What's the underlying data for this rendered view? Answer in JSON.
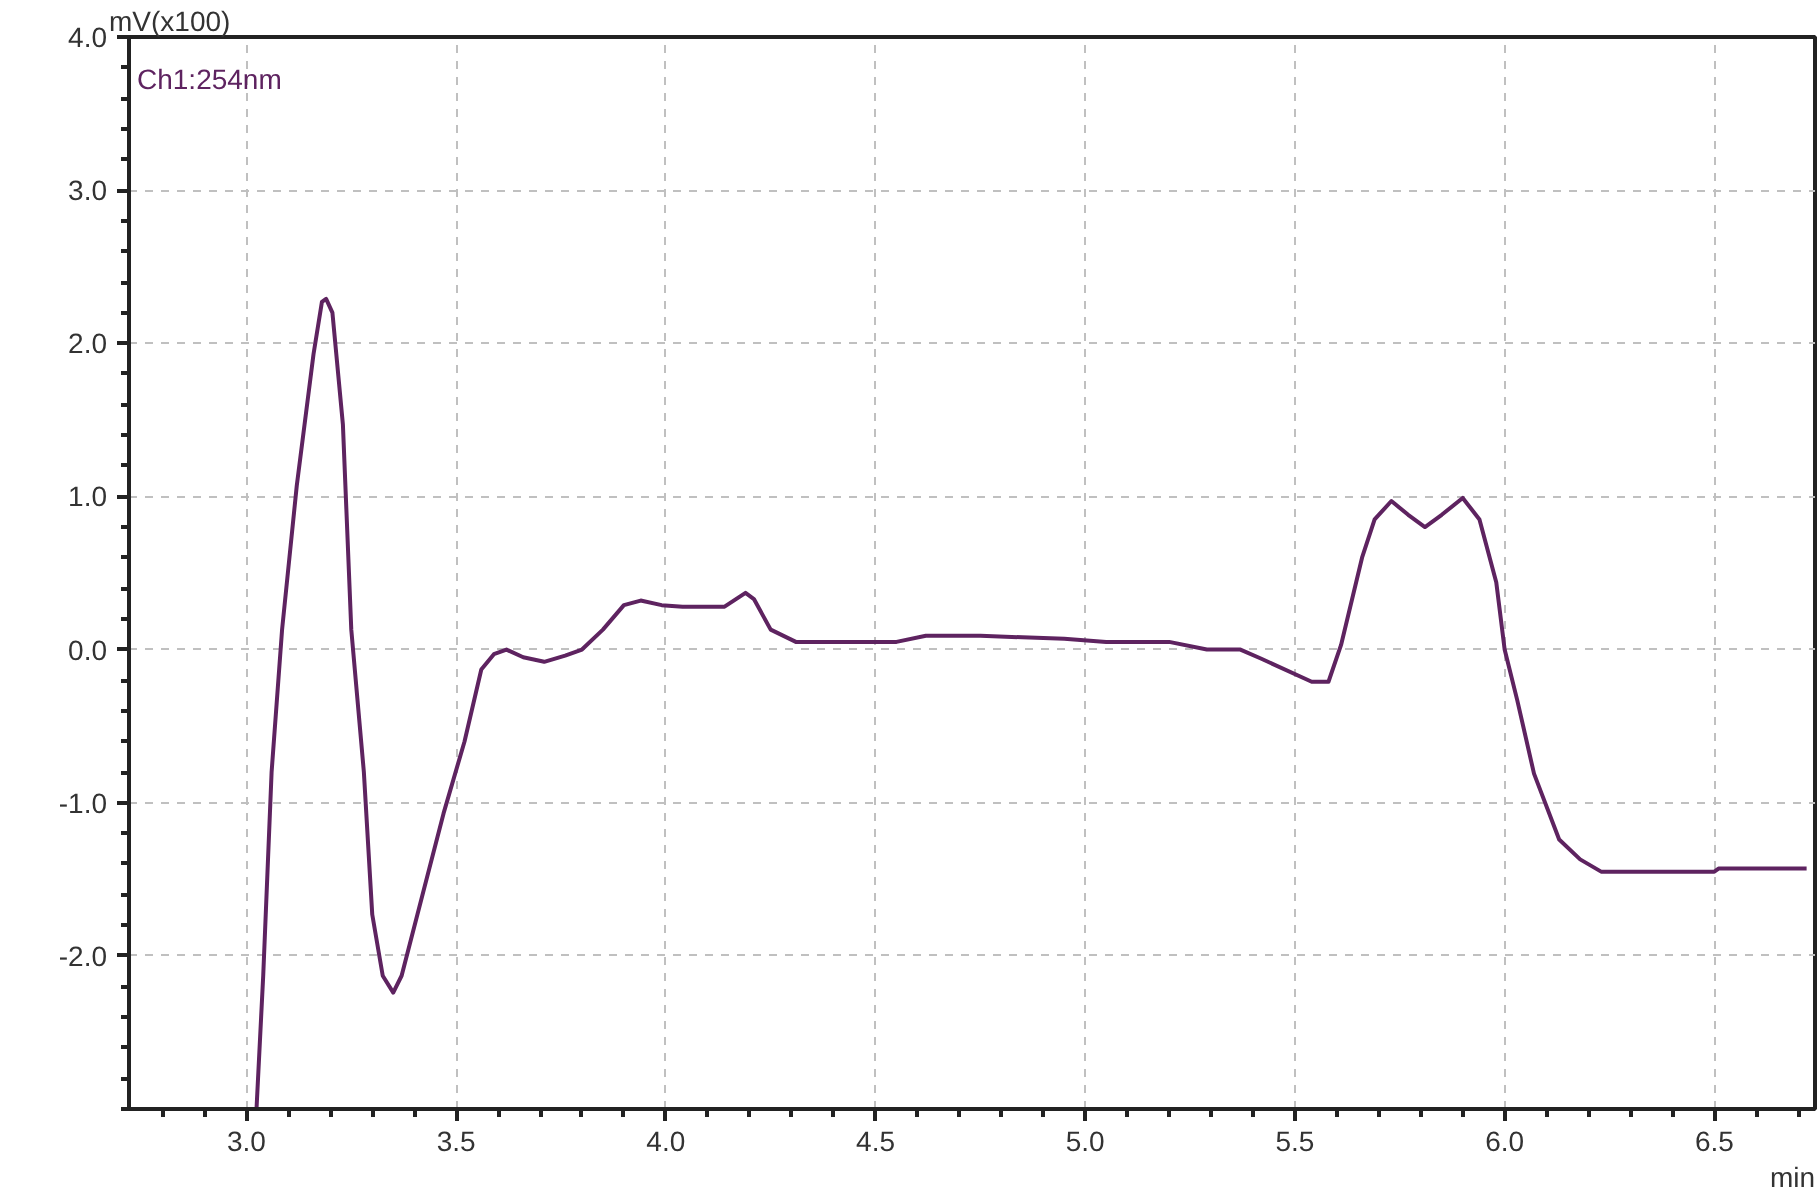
{
  "chart_data": {
    "type": "line",
    "ylabel": "mV(x100)",
    "xlabel": "min",
    "xlim": [
      2.72,
      6.74
    ],
    "ylim": [
      -3.0,
      4.0
    ],
    "xticks": [
      {
        "value": 3.0,
        "label": "3.0"
      },
      3.5,
      {
        "value": 4.0,
        "label": "4.0"
      },
      4.5,
      {
        "value": 5.0,
        "label": "5.0"
      },
      5.5,
      {
        "value": 6.0,
        "label": "6.0"
      },
      6.5
    ],
    "yticks": [
      {
        "value": -2.0,
        "label": "-2.0"
      },
      {
        "value": -1.0,
        "label": "-1.0"
      },
      {
        "value": 0.0,
        "label": "0.0"
      },
      {
        "value": 1.0,
        "label": "1.0"
      },
      {
        "value": 2.0,
        "label": "2.0"
      },
      {
        "value": 3.0,
        "label": "3.0"
      },
      {
        "value": 4.0,
        "label": "4.0"
      }
    ],
    "grid": true,
    "legend": "top left",
    "line_style": "solid",
    "marker": "none",
    "series": [
      {
        "name": "Ch1:254nm",
        "color": "#5e2360",
        "x": [
          3.024,
          3.04,
          3.06,
          3.085,
          3.12,
          3.16,
          3.18,
          3.19,
          3.205,
          3.23,
          3.25,
          3.28,
          3.3,
          3.325,
          3.35,
          3.37,
          3.42,
          3.47,
          3.52,
          3.56,
          3.59,
          3.62,
          3.66,
          3.71,
          3.76,
          3.8,
          3.85,
          3.9,
          3.94,
          3.99,
          4.04,
          4.14,
          4.19,
          4.21,
          4.25,
          4.31,
          4.45,
          4.55,
          4.62,
          4.75,
          4.85,
          4.95,
          5.05,
          5.2,
          5.29,
          5.37,
          5.42,
          5.54,
          5.58,
          5.61,
          5.66,
          5.69,
          5.73,
          5.77,
          5.81,
          5.85,
          5.9,
          5.94,
          5.98,
          6.0,
          6.03,
          6.07,
          6.13,
          6.18,
          6.23,
          6.5,
          6.51,
          6.72
        ],
        "values": [
          -3.0,
          -2.13,
          -0.8,
          0.13,
          1.07,
          1.93,
          2.27,
          2.29,
          2.2,
          1.47,
          0.13,
          -0.8,
          -1.73,
          -2.13,
          -2.24,
          -2.13,
          -1.6,
          -1.07,
          -0.6,
          -0.13,
          -0.03,
          0.0,
          -0.05,
          -0.08,
          -0.04,
          0.0,
          0.13,
          0.29,
          0.32,
          0.29,
          0.28,
          0.28,
          0.37,
          0.33,
          0.13,
          0.05,
          0.05,
          0.05,
          0.09,
          0.09,
          0.08,
          0.07,
          0.05,
          0.05,
          0.0,
          0.0,
          -0.06,
          -0.21,
          -0.21,
          0.03,
          0.6,
          0.85,
          0.97,
          0.88,
          0.8,
          0.88,
          0.99,
          0.85,
          0.44,
          0.0,
          -0.33,
          -0.81,
          -1.24,
          -1.37,
          -1.45,
          -1.45,
          -1.43,
          -1.43
        ]
      }
    ]
  }
}
